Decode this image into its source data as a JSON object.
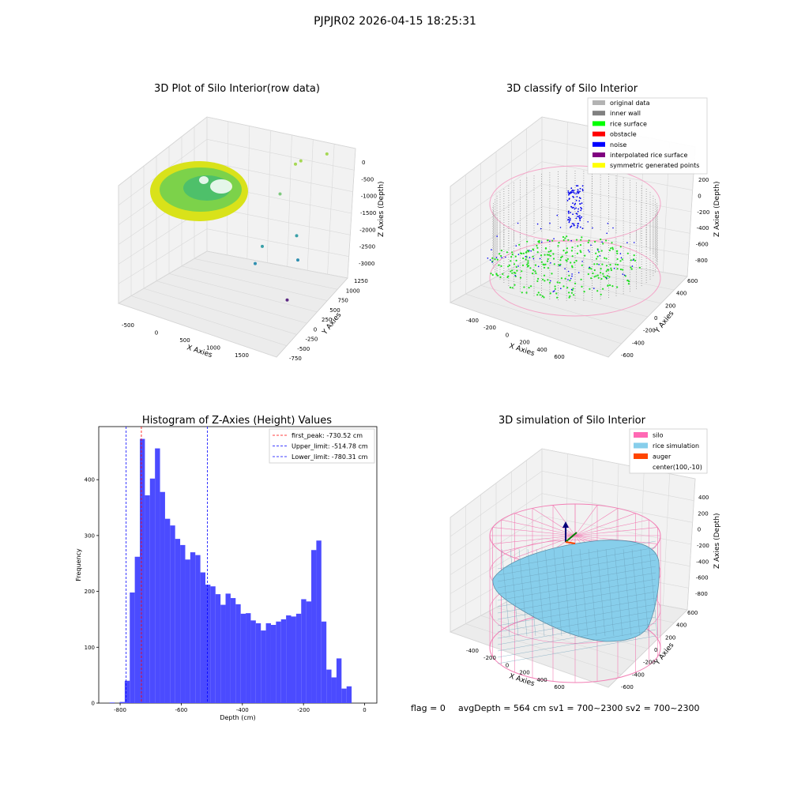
{
  "suptitle": "PJPJR02 2026-04-15 18:25:31",
  "footer": {
    "flag": "flag = 0",
    "summary": "avgDepth = 564 cm  sv1 = 700~2300  sv2 = 700~2300"
  },
  "chart_data": [
    {
      "id": "raw",
      "type": "scatter",
      "title": "3D Plot of Silo Interior(row data)",
      "xlabel": "X Axies",
      "ylabel": "Y Axies",
      "zlabel": "Z Axies (Depth)",
      "x_ticks": [
        "-500",
        "0",
        "500",
        "1000",
        "1500"
      ],
      "y_ticks": [
        "-750",
        "-500",
        "-250",
        "0",
        "250",
        "500",
        "750",
        "1000",
        "1250"
      ],
      "z_ticks": [
        "0",
        "-500",
        "-1000",
        "-1500",
        "-2000",
        "-2500",
        "-3000"
      ],
      "outlier_points": [
        {
          "x": 1100,
          "y": 900,
          "z": -700
        },
        {
          "x": 1150,
          "y": 950,
          "z": -650
        },
        {
          "x": 1350,
          "y": 1250,
          "z": -700
        },
        {
          "x": 1000,
          "y": 700,
          "z": -1300
        },
        {
          "x": 1200,
          "y": 800,
          "z": -2400
        },
        {
          "x": 700,
          "y": 700,
          "z": -2700
        },
        {
          "x": 1300,
          "y": 700,
          "z": -2900
        },
        {
          "x": 700,
          "y": 550,
          "z": -3000
        },
        {
          "x": 1600,
          "y": 100,
          "z": -3300
        }
      ],
      "main_surface": "yellow-green point cloud of rice surface near z≈0 to -600"
    },
    {
      "id": "classify",
      "type": "scatter",
      "title": "3D classify of Silo Interior",
      "legend_placement": "top-right",
      "legend": [
        {
          "label": "original data",
          "color": "#b3b3b3"
        },
        {
          "label": "inner wall",
          "color": "#808080"
        },
        {
          "label": "rice surface",
          "color": "#00ff00"
        },
        {
          "label": "obstacle",
          "color": "#ff0000"
        },
        {
          "label": "noise",
          "color": "#0000ff"
        },
        {
          "label": "interpolated rice surface",
          "color": "#800080"
        },
        {
          "label": "symmetric generated points",
          "color": "#ffff00"
        }
      ],
      "xlabel": "X Axies",
      "ylabel": "Y Axies",
      "zlabel": "Z Axies (Depth)",
      "x_ticks": [
        "-400",
        "-200",
        "0",
        "200",
        "400",
        "600"
      ],
      "y_ticks": [
        "-600",
        "-400",
        "-200",
        "0",
        "200",
        "400",
        "600"
      ],
      "z_ticks": [
        "200",
        "0",
        "-200",
        "-400",
        "-600",
        "-800"
      ]
    },
    {
      "id": "hist",
      "type": "bar",
      "title": "Histogram of Z-Axies (Height) Values",
      "xlabel": "Depth (cm)",
      "ylabel": "Frequency",
      "xlim": [
        -870,
        40
      ],
      "ylim": [
        0,
        495
      ],
      "x_ticks": [
        -800,
        -600,
        -400,
        -200,
        0
      ],
      "y_ticks": [
        0,
        100,
        200,
        300,
        400
      ],
      "bar_color": "#4b4bff",
      "bin_width": 16.5,
      "bins_start": [
        -834.5,
        -818,
        -801.5,
        -785,
        -768.5,
        -752,
        -735.5,
        -719,
        -702.5,
        -686,
        -669.5,
        -653,
        -636.5,
        -620,
        -603.5,
        -587,
        -570.5,
        -554,
        -537.5,
        -521,
        -504.5,
        -488,
        -471.5,
        -455,
        -438.5,
        -422,
        -405.5,
        -389,
        -372.5,
        -356,
        -339.5,
        -323,
        -306.5,
        -290,
        -273.5,
        -257,
        -240.5,
        -224,
        -207.5,
        -191,
        -174.5,
        -158,
        -141.5,
        -125,
        -108.5,
        -92,
        -75.5,
        -59,
        -42.5,
        -26,
        -9.5
      ],
      "counts": [
        1,
        0,
        2,
        40,
        198,
        262,
        473,
        372,
        402,
        456,
        378,
        330,
        318,
        294,
        283,
        257,
        270,
        265,
        234,
        212,
        209,
        195,
        176,
        196,
        188,
        177,
        160,
        161,
        148,
        143,
        130,
        143,
        140,
        146,
        150,
        157,
        155,
        160,
        186,
        182,
        274,
        291,
        146,
        60,
        46,
        80,
        26,
        30,
        0,
        0,
        0
      ],
      "lines": [
        {
          "label": "first_peak: -730.52 cm",
          "x": -730.52,
          "color": "#ff0000"
        },
        {
          "label": "Upper_limit: -514.78 cm",
          "x": -514.78,
          "color": "#0000ff"
        },
        {
          "label": "Lower_limit: -780.31 cm",
          "x": -780.31,
          "color": "#0000ff"
        }
      ],
      "legend_placement": "top-right"
    },
    {
      "id": "sim",
      "type": "scatter",
      "title": "3D simulation of Silo Interior",
      "legend_placement": "top-right",
      "legend": [
        {
          "label": "silo",
          "color": "#ff69b4"
        },
        {
          "label": "rice simulation",
          "color": "#87ceeb"
        },
        {
          "label": "auger",
          "color": "#ff4500"
        },
        {
          "label": "center(100,-10)",
          "color": ""
        }
      ],
      "xlabel": "X Axies",
      "ylabel": "Y Axies",
      "zlabel": "Z Axies (Depth)",
      "x_ticks": [
        "-400",
        "-200",
        "0",
        "200",
        "400",
        "600"
      ],
      "y_ticks": [
        "-600",
        "-400",
        "-200",
        "0",
        "200",
        "400",
        "600"
      ],
      "z_ticks": [
        "400",
        "200",
        "0",
        "-200",
        "-400",
        "-600",
        "-800"
      ]
    }
  ]
}
